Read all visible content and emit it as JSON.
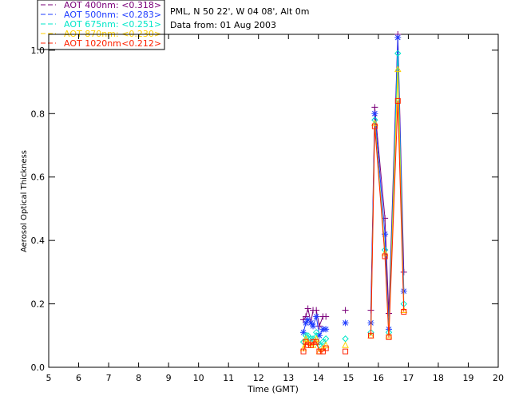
{
  "chart_data": {
    "type": "line",
    "title_lines": [
      "PML, N 50 22', W 04 08', Alt 0m",
      "Data from: 01 Aug 2003"
    ],
    "xlabel": "Time (GMT)",
    "ylabel": "Aerosol Optical Thickness",
    "xlim": [
      5,
      20
    ],
    "ylim": [
      0,
      1.05
    ],
    "xticks": [
      5,
      6,
      7,
      8,
      9,
      10,
      11,
      12,
      13,
      14,
      15,
      16,
      17,
      18,
      19,
      20
    ],
    "yticks": [
      0.0,
      0.2,
      0.4,
      0.6,
      0.8,
      1.0
    ],
    "ytick_labels": [
      "0.0",
      "0.2",
      "0.4",
      "0.6",
      "0.8",
      "1.0"
    ],
    "grid": false,
    "legend_position": "top-left outside plot",
    "series": [
      {
        "name": "AOT  400nm",
        "mean_label": ": <0.318>",
        "color": "#7a007a",
        "marker": "plus",
        "points": [
          [
            13.5,
            0.15
          ],
          [
            13.58,
            0.16
          ],
          [
            13.65,
            0.185
          ],
          [
            13.75,
            0.14
          ],
          [
            13.82,
            0.18
          ],
          [
            13.93,
            0.18
          ],
          [
            14.03,
            0.13
          ],
          [
            14.15,
            0.16
          ],
          [
            14.25,
            0.16
          ],
          [
            14.9,
            0.18
          ],
          [
            15.75,
            0.18
          ],
          [
            15.88,
            0.82
          ],
          [
            16.22,
            0.47
          ],
          [
            16.35,
            0.17
          ],
          [
            16.65,
            1.05
          ],
          [
            16.85,
            0.3
          ]
        ]
      },
      {
        "name": "AOT  500nm",
        "mean_label": ": <0.283>",
        "color": "#1f3cff",
        "marker": "asterisk",
        "points": [
          [
            13.5,
            0.11
          ],
          [
            13.58,
            0.14
          ],
          [
            13.65,
            0.15
          ],
          [
            13.75,
            0.14
          ],
          [
            13.82,
            0.13
          ],
          [
            13.93,
            0.16
          ],
          [
            14.03,
            0.1
          ],
          [
            14.15,
            0.12
          ],
          [
            14.25,
            0.12
          ],
          [
            14.9,
            0.14
          ],
          [
            15.75,
            0.14
          ],
          [
            15.88,
            0.8
          ],
          [
            16.22,
            0.42
          ],
          [
            16.35,
            0.12
          ],
          [
            16.65,
            1.04
          ],
          [
            16.85,
            0.24
          ]
        ]
      },
      {
        "name": "AOT  675nm",
        "mean_label": ": <0.251>",
        "color": "#00e6c8",
        "marker": "diamond",
        "points": [
          [
            13.5,
            0.08
          ],
          [
            13.58,
            0.1
          ],
          [
            13.65,
            0.1
          ],
          [
            13.75,
            0.09
          ],
          [
            13.82,
            0.09
          ],
          [
            13.93,
            0.11
          ],
          [
            14.03,
            0.07
          ],
          [
            14.15,
            0.08
          ],
          [
            14.25,
            0.09
          ],
          [
            14.9,
            0.09
          ],
          [
            15.75,
            0.11
          ],
          [
            15.88,
            0.78
          ],
          [
            16.22,
            0.37
          ],
          [
            16.35,
            0.11
          ],
          [
            16.65,
            0.99
          ],
          [
            16.85,
            0.2
          ]
        ]
      },
      {
        "name": "AOT  870nm",
        "mean_label": ": <0.230>",
        "color": "#ffcf00",
        "marker": "triangle",
        "points": [
          [
            13.5,
            0.06
          ],
          [
            13.58,
            0.09
          ],
          [
            13.65,
            0.08
          ],
          [
            13.75,
            0.07
          ],
          [
            13.82,
            0.07
          ],
          [
            13.93,
            0.09
          ],
          [
            14.03,
            0.05
          ],
          [
            14.15,
            0.06
          ],
          [
            14.25,
            0.07
          ],
          [
            14.9,
            0.07
          ],
          [
            15.75,
            0.1
          ],
          [
            15.88,
            0.77
          ],
          [
            16.22,
            0.36
          ],
          [
            16.35,
            0.1
          ],
          [
            16.65,
            0.94
          ],
          [
            16.85,
            0.18
          ]
        ]
      },
      {
        "name": "AOT 1020nm",
        "mean_label": ": <0.212>",
        "color": "#ff2200",
        "marker": "square",
        "points": [
          [
            13.5,
            0.05
          ],
          [
            13.58,
            0.08
          ],
          [
            13.65,
            0.07
          ],
          [
            13.75,
            0.07
          ],
          [
            13.82,
            0.08
          ],
          [
            13.93,
            0.08
          ],
          [
            14.03,
            0.05
          ],
          [
            14.15,
            0.05
          ],
          [
            14.25,
            0.06
          ],
          [
            14.9,
            0.05
          ],
          [
            15.75,
            0.1
          ],
          [
            15.88,
            0.76
          ],
          [
            16.22,
            0.35
          ],
          [
            16.35,
            0.095
          ],
          [
            16.65,
            0.84
          ],
          [
            16.85,
            0.175
          ]
        ]
      }
    ]
  }
}
